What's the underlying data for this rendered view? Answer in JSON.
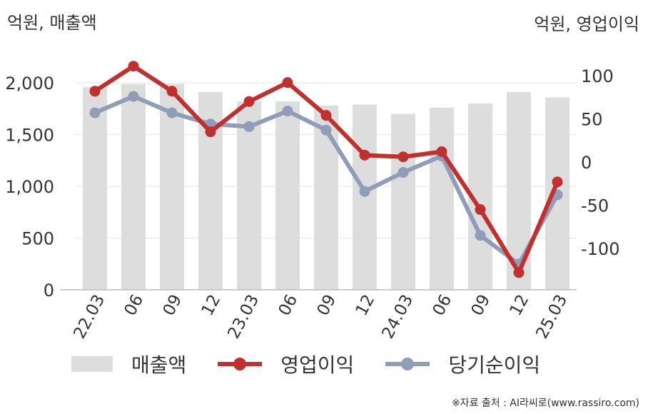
{
  "units": {
    "left": "억원, 매출액",
    "right": "억원, 영업이익"
  },
  "source": "※자료 출처 : AI라씨로(www.rassiro.com)",
  "colors": {
    "bar": "#dddddd",
    "op": "#c0302f",
    "net": "#8f9db8",
    "grid": "#e6e6e6",
    "axis": "#bbbbbb",
    "text": "#333333"
  },
  "chart_data": {
    "type": "bar",
    "categories": [
      "22.03",
      "06",
      "09",
      "12",
      "23.03",
      "06",
      "09",
      "12",
      "24.03",
      "06",
      "09",
      "12",
      "25.03"
    ],
    "y_left": {
      "ticks": [
        0,
        500,
        1000,
        1500,
        2000
      ],
      "tick_labels": [
        "0",
        "500",
        "1,000",
        "1,500",
        "2,000"
      ],
      "range": [
        0,
        2000
      ]
    },
    "y_right": {
      "ticks": [
        -100,
        -50,
        0,
        50,
        100
      ],
      "tick_labels": [
        "-100",
        "-50",
        "0",
        "50",
        "100"
      ],
      "range": [
        -150,
        100
      ]
    },
    "series": [
      {
        "name": "매출액",
        "type": "bar",
        "axis": "left",
        "color": "#dddddd",
        "values": [
          1960,
          1990,
          1990,
          1910,
          1820,
          1820,
          1780,
          1790,
          1700,
          1760,
          1800,
          1910,
          1860
        ]
      },
      {
        "name": "영업이익",
        "type": "line",
        "axis": "right",
        "color": "#c0302f",
        "values": [
          82,
          111,
          82,
          35,
          70,
          92,
          54,
          8,
          6,
          12,
          -55,
          -128,
          -23
        ]
      },
      {
        "name": "당기순이익",
        "type": "line",
        "axis": "right",
        "color": "#8f9db8",
        "values": [
          57,
          76,
          57,
          44,
          41,
          59,
          37,
          -34,
          -12,
          7,
          -85,
          -118,
          -38
        ]
      }
    ]
  }
}
